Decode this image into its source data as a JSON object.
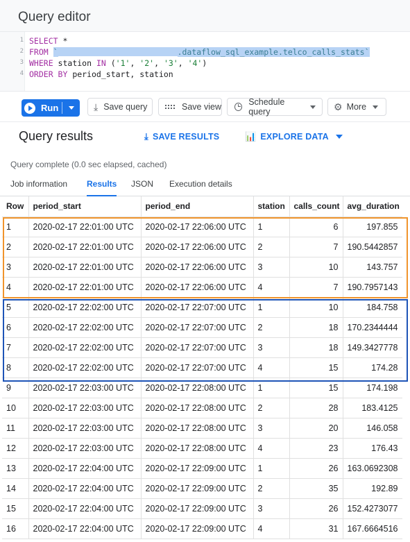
{
  "editor": {
    "title": "Query editor",
    "lines": [
      {
        "no": "1",
        "kw": "SELECT",
        "rest": " *"
      },
      {
        "no": "2",
        "kw": "FROM",
        "rest_before": " ",
        "selected_start": "`",
        "selected_text": ".dataflow_sql_example.telco_calls_stats`"
      },
      {
        "no": "3",
        "kw": "WHERE",
        "rest": " station ",
        "kw2": "IN",
        "rest2": " (",
        "s1": "'1'",
        "c1": ", ",
        "s2": "'2'",
        "c2": ", ",
        "s3": "'3'",
        "c3": ", ",
        "s4": "'4'",
        "end": ")"
      },
      {
        "no": "4",
        "kw": "ORDER BY",
        "rest": " period_start, station"
      }
    ]
  },
  "toolbar": {
    "run_label": "Run",
    "save_query_label": "Save query",
    "save_view_label": "Save view",
    "schedule_query_label": "Schedule query",
    "more_label": "More"
  },
  "results": {
    "title": "Query results",
    "save_results_label": "SAVE RESULTS",
    "explore_data_label": "EXPLORE DATA",
    "status": "Query complete (0.0 sec elapsed, cached)",
    "tabs": [
      "Job information",
      "Results",
      "JSON",
      "Execution details"
    ],
    "active_tab": "Results",
    "columns": [
      "Row",
      "period_start",
      "period_end",
      "station",
      "calls_count",
      "avg_duration"
    ],
    "rows": [
      [
        "1",
        "2020-02-17 22:01:00 UTC",
        "2020-02-17 22:06:00 UTC",
        "1",
        "6",
        "197.855"
      ],
      [
        "2",
        "2020-02-17 22:01:00 UTC",
        "2020-02-17 22:06:00 UTC",
        "2",
        "7",
        "190.5442857"
      ],
      [
        "3",
        "2020-02-17 22:01:00 UTC",
        "2020-02-17 22:06:00 UTC",
        "3",
        "10",
        "143.757"
      ],
      [
        "4",
        "2020-02-17 22:01:00 UTC",
        "2020-02-17 22:06:00 UTC",
        "4",
        "7",
        "190.7957143"
      ],
      [
        "5",
        "2020-02-17 22:02:00 UTC",
        "2020-02-17 22:07:00 UTC",
        "1",
        "10",
        "184.758"
      ],
      [
        "6",
        "2020-02-17 22:02:00 UTC",
        "2020-02-17 22:07:00 UTC",
        "2",
        "18",
        "170.2344444"
      ],
      [
        "7",
        "2020-02-17 22:02:00 UTC",
        "2020-02-17 22:07:00 UTC",
        "3",
        "18",
        "149.3427778"
      ],
      [
        "8",
        "2020-02-17 22:02:00 UTC",
        "2020-02-17 22:07:00 UTC",
        "4",
        "15",
        "174.28"
      ],
      [
        "9",
        "2020-02-17 22:03:00 UTC",
        "2020-02-17 22:08:00 UTC",
        "1",
        "15",
        "174.198"
      ],
      [
        "10",
        "2020-02-17 22:03:00 UTC",
        "2020-02-17 22:08:00 UTC",
        "2",
        "28",
        "183.4125"
      ],
      [
        "11",
        "2020-02-17 22:03:00 UTC",
        "2020-02-17 22:08:00 UTC",
        "3",
        "20",
        "146.058"
      ],
      [
        "12",
        "2020-02-17 22:03:00 UTC",
        "2020-02-17 22:08:00 UTC",
        "4",
        "23",
        "176.43"
      ],
      [
        "13",
        "2020-02-17 22:04:00 UTC",
        "2020-02-17 22:09:00 UTC",
        "1",
        "26",
        "163.0692308"
      ],
      [
        "14",
        "2020-02-17 22:04:00 UTC",
        "2020-02-17 22:09:00 UTC",
        "2",
        "35",
        "192.89"
      ],
      [
        "15",
        "2020-02-17 22:04:00 UTC",
        "2020-02-17 22:09:00 UTC",
        "3",
        "26",
        "152.4273077"
      ],
      [
        "16",
        "2020-02-17 22:04:00 UTC",
        "2020-02-17 22:09:00 UTC",
        "4",
        "31",
        "167.6664516"
      ]
    ]
  },
  "colors": {
    "accent": "#1a73e8",
    "highlight_group_1": "#f0942c",
    "highlight_group_2": "#1e54b7"
  }
}
